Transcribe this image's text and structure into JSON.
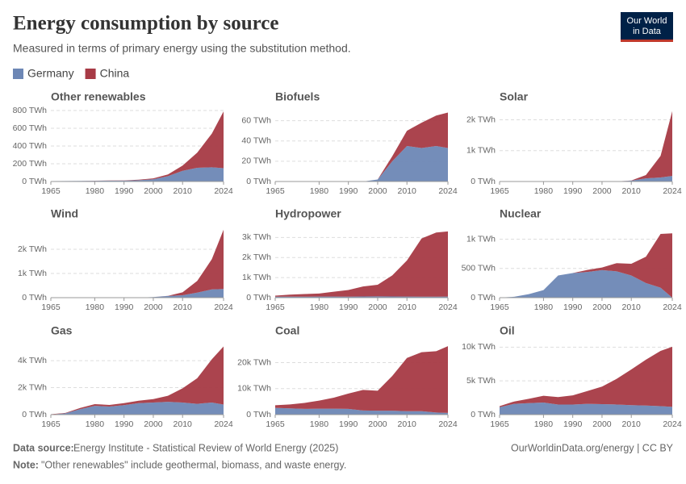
{
  "title": "Energy consumption by source",
  "subtitle": "Measured in terms of primary energy using the substitution method.",
  "logo": [
    "Our World",
    "in Data"
  ],
  "source_label": "Data source:",
  "source": "Energy Institute - Statistical Review of World Energy (2025)",
  "url": "OurWorldinData.org/energy | CC BY",
  "note_label": "Note:",
  "note": "\"Other renewables\" include geothermal, biomass, and waste energy.",
  "chart_data": [
    {
      "type": "area",
      "stacked": true,
      "title": "Other renewables",
      "x": [
        1965,
        1970,
        1975,
        1980,
        1985,
        1990,
        1995,
        2000,
        2005,
        2010,
        2015,
        2020,
        2024
      ],
      "xlim": [
        1965,
        2024
      ],
      "xticks": [
        1965,
        1980,
        1990,
        2000,
        2010,
        2024
      ],
      "ylim": [
        0,
        800
      ],
      "yticks": [
        {
          "value": 0,
          "label": "0 TWh"
        },
        {
          "value": 200,
          "label": "200 TWh"
        },
        {
          "value": 400,
          "label": "400 TWh"
        },
        {
          "value": 600,
          "label": "600 TWh"
        },
        {
          "value": 800,
          "label": "800 TWh"
        }
      ],
      "grid": true,
      "series": [
        {
          "name": "Germany",
          "color": "#6d87b5",
          "values": [
            5,
            6,
            7,
            8,
            9,
            10,
            15,
            25,
            60,
            120,
            155,
            160,
            150
          ]
        },
        {
          "name": "China",
          "color": "#a73a45",
          "values": [
            0,
            0,
            0,
            1,
            2,
            3,
            5,
            10,
            20,
            60,
            170,
            380,
            640
          ]
        }
      ]
    },
    {
      "type": "area",
      "stacked": true,
      "title": "Biofuels",
      "x": [
        1965,
        1970,
        1975,
        1980,
        1985,
        1990,
        1995,
        2000,
        2005,
        2010,
        2015,
        2020,
        2024
      ],
      "xlim": [
        1965,
        2024
      ],
      "xticks": [
        1965,
        1980,
        1990,
        2000,
        2010,
        2024
      ],
      "ylim": [
        0,
        70
      ],
      "yticks": [
        {
          "value": 0,
          "label": "0 TWh"
        },
        {
          "value": 20,
          "label": "20 TWh"
        },
        {
          "value": 40,
          "label": "40 TWh"
        },
        {
          "value": 60,
          "label": "60 TWh"
        }
      ],
      "grid": true,
      "series": [
        {
          "name": "Germany",
          "color": "#6d87b5",
          "values": [
            0,
            0,
            0,
            0,
            0,
            0,
            0,
            2,
            20,
            35,
            33,
            35,
            33
          ]
        },
        {
          "name": "China",
          "color": "#a73a45",
          "values": [
            0,
            0,
            0,
            0,
            0,
            0,
            0,
            0,
            5,
            15,
            25,
            30,
            35
          ]
        }
      ]
    },
    {
      "type": "area",
      "stacked": true,
      "title": "Solar",
      "x": [
        1965,
        1970,
        1975,
        1980,
        1985,
        1990,
        1995,
        2000,
        2005,
        2010,
        2015,
        2020,
        2024
      ],
      "xlim": [
        1965,
        2024
      ],
      "xticks": [
        1965,
        1980,
        1990,
        2000,
        2010,
        2024
      ],
      "ylim": [
        0,
        2300
      ],
      "yticks": [
        {
          "value": 0,
          "label": "0 TWh"
        },
        {
          "value": 1000,
          "label": "1k TWh"
        },
        {
          "value": 2000,
          "label": "2k TWh"
        }
      ],
      "grid": true,
      "series": [
        {
          "name": "Germany",
          "color": "#6d87b5",
          "values": [
            0,
            0,
            0,
            0,
            0,
            0,
            0,
            0,
            3,
            30,
            100,
            130,
            180
          ]
        },
        {
          "name": "China",
          "color": "#a73a45",
          "values": [
            0,
            0,
            0,
            0,
            0,
            0,
            0,
            0,
            0,
            2,
            110,
            700,
            2100
          ]
        }
      ]
    },
    {
      "type": "area",
      "stacked": true,
      "title": "Wind",
      "x": [
        1965,
        1970,
        1975,
        1980,
        1985,
        1990,
        1995,
        2000,
        2005,
        2010,
        2015,
        2020,
        2024
      ],
      "xlim": [
        1965,
        2024
      ],
      "xticks": [
        1965,
        1980,
        1990,
        2000,
        2010,
        2024
      ],
      "ylim": [
        0,
        2900
      ],
      "yticks": [
        {
          "value": 0,
          "label": "0 TWh"
        },
        {
          "value": 1000,
          "label": "1k TWh"
        },
        {
          "value": 2000,
          "label": "2k TWh"
        }
      ],
      "grid": true,
      "series": [
        {
          "name": "Germany",
          "color": "#6d87b5",
          "values": [
            0,
            0,
            0,
            0,
            0,
            0,
            5,
            25,
            70,
            100,
            210,
            340,
            360
          ]
        },
        {
          "name": "China",
          "color": "#a73a45",
          "values": [
            0,
            0,
            0,
            0,
            0,
            0,
            0,
            2,
            5,
            120,
            480,
            1250,
            2450
          ]
        }
      ]
    },
    {
      "type": "area",
      "stacked": true,
      "title": "Hydropower",
      "x": [
        1965,
        1970,
        1975,
        1980,
        1985,
        1990,
        1995,
        2000,
        2005,
        2010,
        2015,
        2020,
        2024
      ],
      "xlim": [
        1965,
        2024
      ],
      "xticks": [
        1965,
        1980,
        1990,
        2000,
        2010,
        2024
      ],
      "ylim": [
        0,
        3500
      ],
      "yticks": [
        {
          "value": 0,
          "label": "0 TWh"
        },
        {
          "value": 1000,
          "label": "1k TWh"
        },
        {
          "value": 2000,
          "label": "2k TWh"
        },
        {
          "value": 3000,
          "label": "3k TWh"
        }
      ],
      "grid": true,
      "series": [
        {
          "name": "Germany",
          "color": "#6d87b5",
          "values": [
            50,
            50,
            50,
            55,
            55,
            50,
            60,
            65,
            60,
            55,
            50,
            50,
            55
          ]
        },
        {
          "name": "China",
          "color": "#a73a45",
          "values": [
            50,
            100,
            130,
            150,
            240,
            330,
            500,
            580,
            1050,
            1800,
            2900,
            3200,
            3250
          ]
        }
      ]
    },
    {
      "type": "area",
      "stacked": true,
      "title": "Nuclear",
      "x": [
        1965,
        1970,
        1975,
        1980,
        1985,
        1990,
        1995,
        2000,
        2005,
        2010,
        2015,
        2020,
        2024
      ],
      "xlim": [
        1965,
        2024
      ],
      "xticks": [
        1965,
        1980,
        1990,
        2000,
        2010,
        2024
      ],
      "ylim": [
        0,
        1200
      ],
      "yticks": [
        {
          "value": 0,
          "label": "0 TWh"
        },
        {
          "value": 500,
          "label": "500 TWh"
        },
        {
          "value": 1000,
          "label": "1k TWh"
        }
      ],
      "grid": true,
      "series": [
        {
          "name": "Germany",
          "color": "#6d87b5",
          "values": [
            1,
            15,
            60,
            130,
            380,
            420,
            440,
            470,
            450,
            380,
            250,
            170,
            0
          ]
        },
        {
          "name": "China",
          "color": "#a73a45",
          "values": [
            0,
            0,
            0,
            0,
            0,
            0,
            35,
            45,
            140,
            200,
            450,
            920,
            1100
          ]
        }
      ]
    },
    {
      "type": "area",
      "stacked": true,
      "title": "Gas",
      "x": [
        1965,
        1970,
        1975,
        1980,
        1985,
        1990,
        1995,
        2000,
        2005,
        2010,
        2015,
        2020,
        2024
      ],
      "xlim": [
        1965,
        2024
      ],
      "xticks": [
        1965,
        1980,
        1990,
        2000,
        2010,
        2024
      ],
      "ylim": [
        0,
        5200
      ],
      "yticks": [
        {
          "value": 0,
          "label": "0 TWh"
        },
        {
          "value": 2000,
          "label": "2k TWh"
        },
        {
          "value": 4000,
          "label": "4k TWh"
        }
      ],
      "grid": true,
      "series": [
        {
          "name": "Germany",
          "color": "#6d87b5",
          "values": [
            10,
            100,
            400,
            650,
            600,
            700,
            850,
            900,
            950,
            900,
            800,
            900,
            750
          ]
        },
        {
          "name": "China",
          "color": "#a73a45",
          "values": [
            20,
            30,
            90,
            130,
            120,
            150,
            180,
            250,
            450,
            1050,
            1900,
            3200,
            4300
          ]
        }
      ]
    },
    {
      "type": "area",
      "stacked": true,
      "title": "Coal",
      "x": [
        1965,
        1970,
        1975,
        1980,
        1985,
        1990,
        1995,
        2000,
        2005,
        2010,
        2015,
        2020,
        2024
      ],
      "xlim": [
        1965,
        2024
      ],
      "xticks": [
        1965,
        1980,
        1990,
        2000,
        2010,
        2024
      ],
      "ylim": [
        0,
        27000
      ],
      "yticks": [
        {
          "value": 0,
          "label": "0 TWh"
        },
        {
          "value": 10000,
          "label": "10k TWh"
        },
        {
          "value": 20000,
          "label": "20k TWh"
        }
      ],
      "grid": true,
      "series": [
        {
          "name": "Germany",
          "color": "#6d87b5",
          "values": [
            2600,
            2400,
            2200,
            2300,
            2300,
            2200,
            1600,
            1500,
            1500,
            1300,
            1300,
            800,
            650
          ]
        },
        {
          "name": "China",
          "color": "#a73a45",
          "values": [
            1000,
            1500,
            2300,
            3100,
            4200,
            5900,
            7900,
            7700,
            13400,
            20500,
            22700,
            23600,
            25700
          ]
        }
      ]
    },
    {
      "type": "area",
      "stacked": true,
      "title": "Oil",
      "x": [
        1965,
        1970,
        1975,
        1980,
        1985,
        1990,
        1995,
        2000,
        2005,
        2010,
        2015,
        2020,
        2024
      ],
      "xlim": [
        1965,
        2024
      ],
      "xticks": [
        1965,
        1980,
        1990,
        2000,
        2010,
        2024
      ],
      "ylim": [
        0,
        10400
      ],
      "yticks": [
        {
          "value": 0,
          "label": "0 TWh"
        },
        {
          "value": 5000,
          "label": "5k TWh"
        },
        {
          "value": 10000,
          "label": "10k TWh"
        }
      ],
      "grid": true,
      "series": [
        {
          "name": "Germany",
          "color": "#6d87b5",
          "values": [
            1100,
            1600,
            1700,
            1800,
            1500,
            1500,
            1600,
            1550,
            1500,
            1400,
            1350,
            1250,
            1150
          ]
        },
        {
          "name": "China",
          "color": "#a73a45",
          "values": [
            150,
            350,
            650,
            1000,
            1100,
            1350,
            1900,
            2600,
            3800,
            5300,
            6800,
            8200,
            8900
          ]
        }
      ]
    }
  ]
}
